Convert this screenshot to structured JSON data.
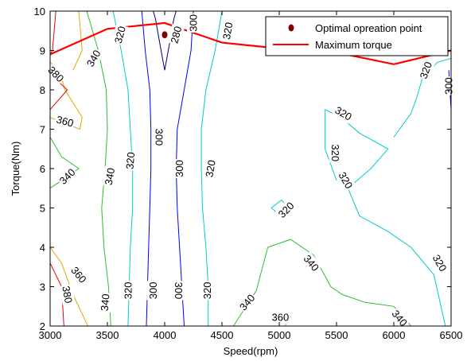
{
  "chart_data": {
    "type": "contour",
    "title": "",
    "xlabel": "Speed(rpm)",
    "ylabel": "Torque(Nm)",
    "xlim": [
      3000,
      6500
    ],
    "ylim": [
      2,
      10
    ],
    "xticks": [
      3000,
      3500,
      4000,
      4500,
      5000,
      5500,
      6000,
      6500
    ],
    "yticks": [
      2,
      3,
      4,
      5,
      6,
      7,
      8,
      9,
      10
    ],
    "legend_position": "top-right",
    "grid": false,
    "levels": [
      {
        "level": 280,
        "color": "#000080",
        "paths": [
          [
            [
              4000,
              8.5
            ],
            [
              3950,
              9.3
            ],
            [
              3920,
              9.8
            ],
            [
              3900,
              10
            ]
          ],
          [
            [
              4000,
              8.5
            ],
            [
              4050,
              9.3
            ],
            [
              4080,
              9.8
            ],
            [
              4100,
              10
            ]
          ]
        ],
        "labels": [
          {
            "text": "280",
            "x": 4100,
            "y": 9.4,
            "angle": -75
          }
        ]
      },
      {
        "level": 300,
        "color": "#0000ff",
        "paths": [
          [
            [
              3800,
              10
            ],
            [
              3830,
              9
            ],
            [
              3870,
              8
            ],
            [
              3880,
              7
            ],
            [
              3880,
              6
            ],
            [
              3870,
              5
            ],
            [
              3860,
              4
            ],
            [
              3850,
              3
            ],
            [
              3840,
              2
            ]
          ],
          [
            [
              4250,
              10
            ],
            [
              4230,
              9
            ],
            [
              4170,
              8
            ],
            [
              4110,
              7
            ],
            [
              4100,
              6
            ],
            [
              4110,
              5
            ],
            [
              4130,
              4
            ],
            [
              4150,
              3
            ],
            [
              4170,
              2
            ]
          ],
          [
            [
              6480,
              8.5
            ],
            [
              6500,
              7.5
            ]
          ]
        ],
        "labels": [
          {
            "text": "300",
            "x": 4250,
            "y": 9.7,
            "angle": -90
          },
          {
            "text": "300",
            "x": 3950,
            "y": 6.8,
            "angle": 90
          },
          {
            "text": "300",
            "x": 4130,
            "y": 6.0,
            "angle": -90
          },
          {
            "text": "300",
            "x": 3900,
            "y": 2.9,
            "angle": -90
          },
          {
            "text": "300",
            "x": 4120,
            "y": 2.9,
            "angle": 90
          },
          {
            "text": "300",
            "x": 6480,
            "y": 8.1,
            "angle": -90
          }
        ]
      },
      {
        "level": 320,
        "color": "#00cccc",
        "paths": [
          [
            [
              3550,
              10
            ],
            [
              3620,
              9
            ],
            [
              3680,
              8
            ],
            [
              3700,
              7
            ],
            [
              3720,
              6
            ],
            [
              3720,
              5
            ],
            [
              3700,
              4
            ],
            [
              3690,
              3
            ],
            [
              3680,
              2
            ]
          ],
          [
            [
              4500,
              10
            ],
            [
              4440,
              9
            ],
            [
              4360,
              8
            ],
            [
              4320,
              7
            ],
            [
              4320,
              6
            ],
            [
              4330,
              5
            ],
            [
              4360,
              4
            ],
            [
              4380,
              3
            ],
            [
              4380,
              2
            ]
          ],
          [
            [
              5400,
              7.5
            ],
            [
              5540,
              7.3
            ],
            [
              5700,
              6.9
            ],
            [
              5950,
              6.5
            ],
            [
              5800,
              6
            ],
            [
              5600,
              5.5
            ],
            [
              5700,
              4.8
            ],
            [
              5950,
              4.4
            ],
            [
              6150,
              4
            ],
            [
              6350,
              3.3
            ],
            [
              6450,
              2
            ]
          ],
          [
            [
              5400,
              7.5
            ],
            [
              5400,
              6.5
            ],
            [
              5500,
              5.7
            ]
          ],
          [
            [
              4930,
              5.0
            ],
            [
              5020,
              5.2
            ],
            [
              5080,
              5.0
            ],
            [
              5020,
              4.8
            ],
            [
              4930,
              5.0
            ]
          ],
          [
            [
              6500,
              8.8
            ],
            [
              6380,
              8.7
            ],
            [
              6250,
              8.3
            ],
            [
              6200,
              7.8
            ],
            [
              6150,
              7.4
            ],
            [
              6050,
              7.0
            ],
            [
              6000,
              6.8
            ]
          ]
        ],
        "labels": [
          {
            "text": "320",
            "x": 3610,
            "y": 9.4,
            "angle": -75
          },
          {
            "text": "320",
            "x": 4550,
            "y": 9.5,
            "angle": -80
          },
          {
            "text": "320",
            "x": 3700,
            "y": 6.2,
            "angle": -85
          },
          {
            "text": "320",
            "x": 4400,
            "y": 6.0,
            "angle": -80
          },
          {
            "text": "320",
            "x": 3680,
            "y": 2.9,
            "angle": -90
          },
          {
            "text": "320",
            "x": 4370,
            "y": 2.9,
            "angle": -90
          },
          {
            "text": "320",
            "x": 5560,
            "y": 7.4,
            "angle": 30
          },
          {
            "text": "320",
            "x": 5490,
            "y": 6.4,
            "angle": 90
          },
          {
            "text": "320",
            "x": 5580,
            "y": 5.7,
            "angle": 60
          },
          {
            "text": "320",
            "x": 5060,
            "y": 4.95,
            "angle": -45
          },
          {
            "text": "320",
            "x": 6280,
            "y": 8.5,
            "angle": -70
          },
          {
            "text": "320",
            "x": 6400,
            "y": 3.6,
            "angle": 60
          }
        ]
      },
      {
        "level": 340,
        "color": "#33bb33",
        "paths": [
          [
            [
              3320,
              10
            ],
            [
              3420,
              9
            ],
            [
              3490,
              8
            ],
            [
              3500,
              7
            ],
            [
              3480,
              6
            ],
            [
              3450,
              5
            ],
            [
              3470,
              4
            ],
            [
              3510,
              3
            ],
            [
              3530,
              2
            ]
          ],
          [
            [
              3000,
              6.8
            ],
            [
              3100,
              6.3
            ],
            [
              3250,
              6.0
            ],
            [
              3050,
              5.6
            ],
            [
              3000,
              5.5
            ]
          ],
          [
            [
              4600,
              2
            ],
            [
              4800,
              2.9
            ],
            [
              4900,
              4.0
            ],
            [
              5100,
              4.2
            ],
            [
              5300,
              3.8
            ],
            [
              5450,
              3.0
            ],
            [
              5550,
              2.8
            ],
            [
              5750,
              2.6
            ],
            [
              6000,
              2.5
            ],
            [
              6150,
              2
            ]
          ]
        ],
        "labels": [
          {
            "text": "340",
            "x": 3380,
            "y": 8.8,
            "angle": -60
          },
          {
            "text": "340",
            "x": 3150,
            "y": 5.8,
            "angle": -45
          },
          {
            "text": "340",
            "x": 3520,
            "y": 5.8,
            "angle": -80
          },
          {
            "text": "340",
            "x": 3480,
            "y": 2.6,
            "angle": -85
          },
          {
            "text": "340",
            "x": 4720,
            "y": 2.6,
            "angle": -50
          },
          {
            "text": "340",
            "x": 5280,
            "y": 3.6,
            "angle": 50
          },
          {
            "text": "340",
            "x": 6050,
            "y": 2.2,
            "angle": 50
          }
        ]
      },
      {
        "level": 360,
        "color": "#ddaa00",
        "paths": [
          [
            [
              3250,
              10
            ],
            [
              3280,
              9
            ],
            [
              3200,
              8.5
            ]
          ],
          [
            [
              3000,
              8.7
            ],
            [
              3080,
              8.5
            ],
            [
              3130,
              8.0
            ],
            [
              3280,
              7.3
            ],
            [
              3260,
              7.0
            ],
            [
              3000,
              7.3
            ]
          ],
          [
            [
              3000,
              4.0
            ],
            [
              3100,
              3.6
            ],
            [
              3200,
              2.8
            ],
            [
              3330,
              2
            ]
          ],
          [
            [
              5050,
              2
            ],
            [
              5100,
              2.25
            ]
          ]
        ],
        "labels": [
          {
            "text": "360",
            "x": 3130,
            "y": 7.2,
            "angle": 15
          },
          {
            "text": "360",
            "x": 3250,
            "y": 3.3,
            "angle": 50
          },
          {
            "text": "360",
            "x": 5010,
            "y": 2.22,
            "angle": 0
          }
        ]
      },
      {
        "level": 380,
        "color": "#ee0000",
        "paths": [
          [
            [
              3050,
              10
            ],
            [
              3020,
              9
            ],
            [
              3000,
              8.9
            ]
          ],
          [
            [
              3000,
              8.4
            ],
            [
              3150,
              8.0
            ],
            [
              3000,
              7.5
            ]
          ],
          [
            [
              3000,
              3.6
            ],
            [
              3100,
              3.0
            ],
            [
              3120,
              2
            ]
          ]
        ],
        "labels": [
          {
            "text": "380",
            "x": 3050,
            "y": 8.4,
            "angle": 45
          },
          {
            "text": "380",
            "x": 3150,
            "y": 2.8,
            "angle": 80
          }
        ]
      }
    ],
    "max_torque_curve": {
      "name": "Maximum torque",
      "color": "#ff0000",
      "x": [
        3000,
        3500,
        4000,
        4500,
        5000,
        5500,
        6000,
        6500
      ],
      "y": [
        8.9,
        9.55,
        9.7,
        9.2,
        9.05,
        8.95,
        8.65,
        9.0
      ]
    },
    "optimal_point": {
      "name": "Optimal opreation point",
      "color": "#800000",
      "x": 4000,
      "y": 9.4
    }
  }
}
